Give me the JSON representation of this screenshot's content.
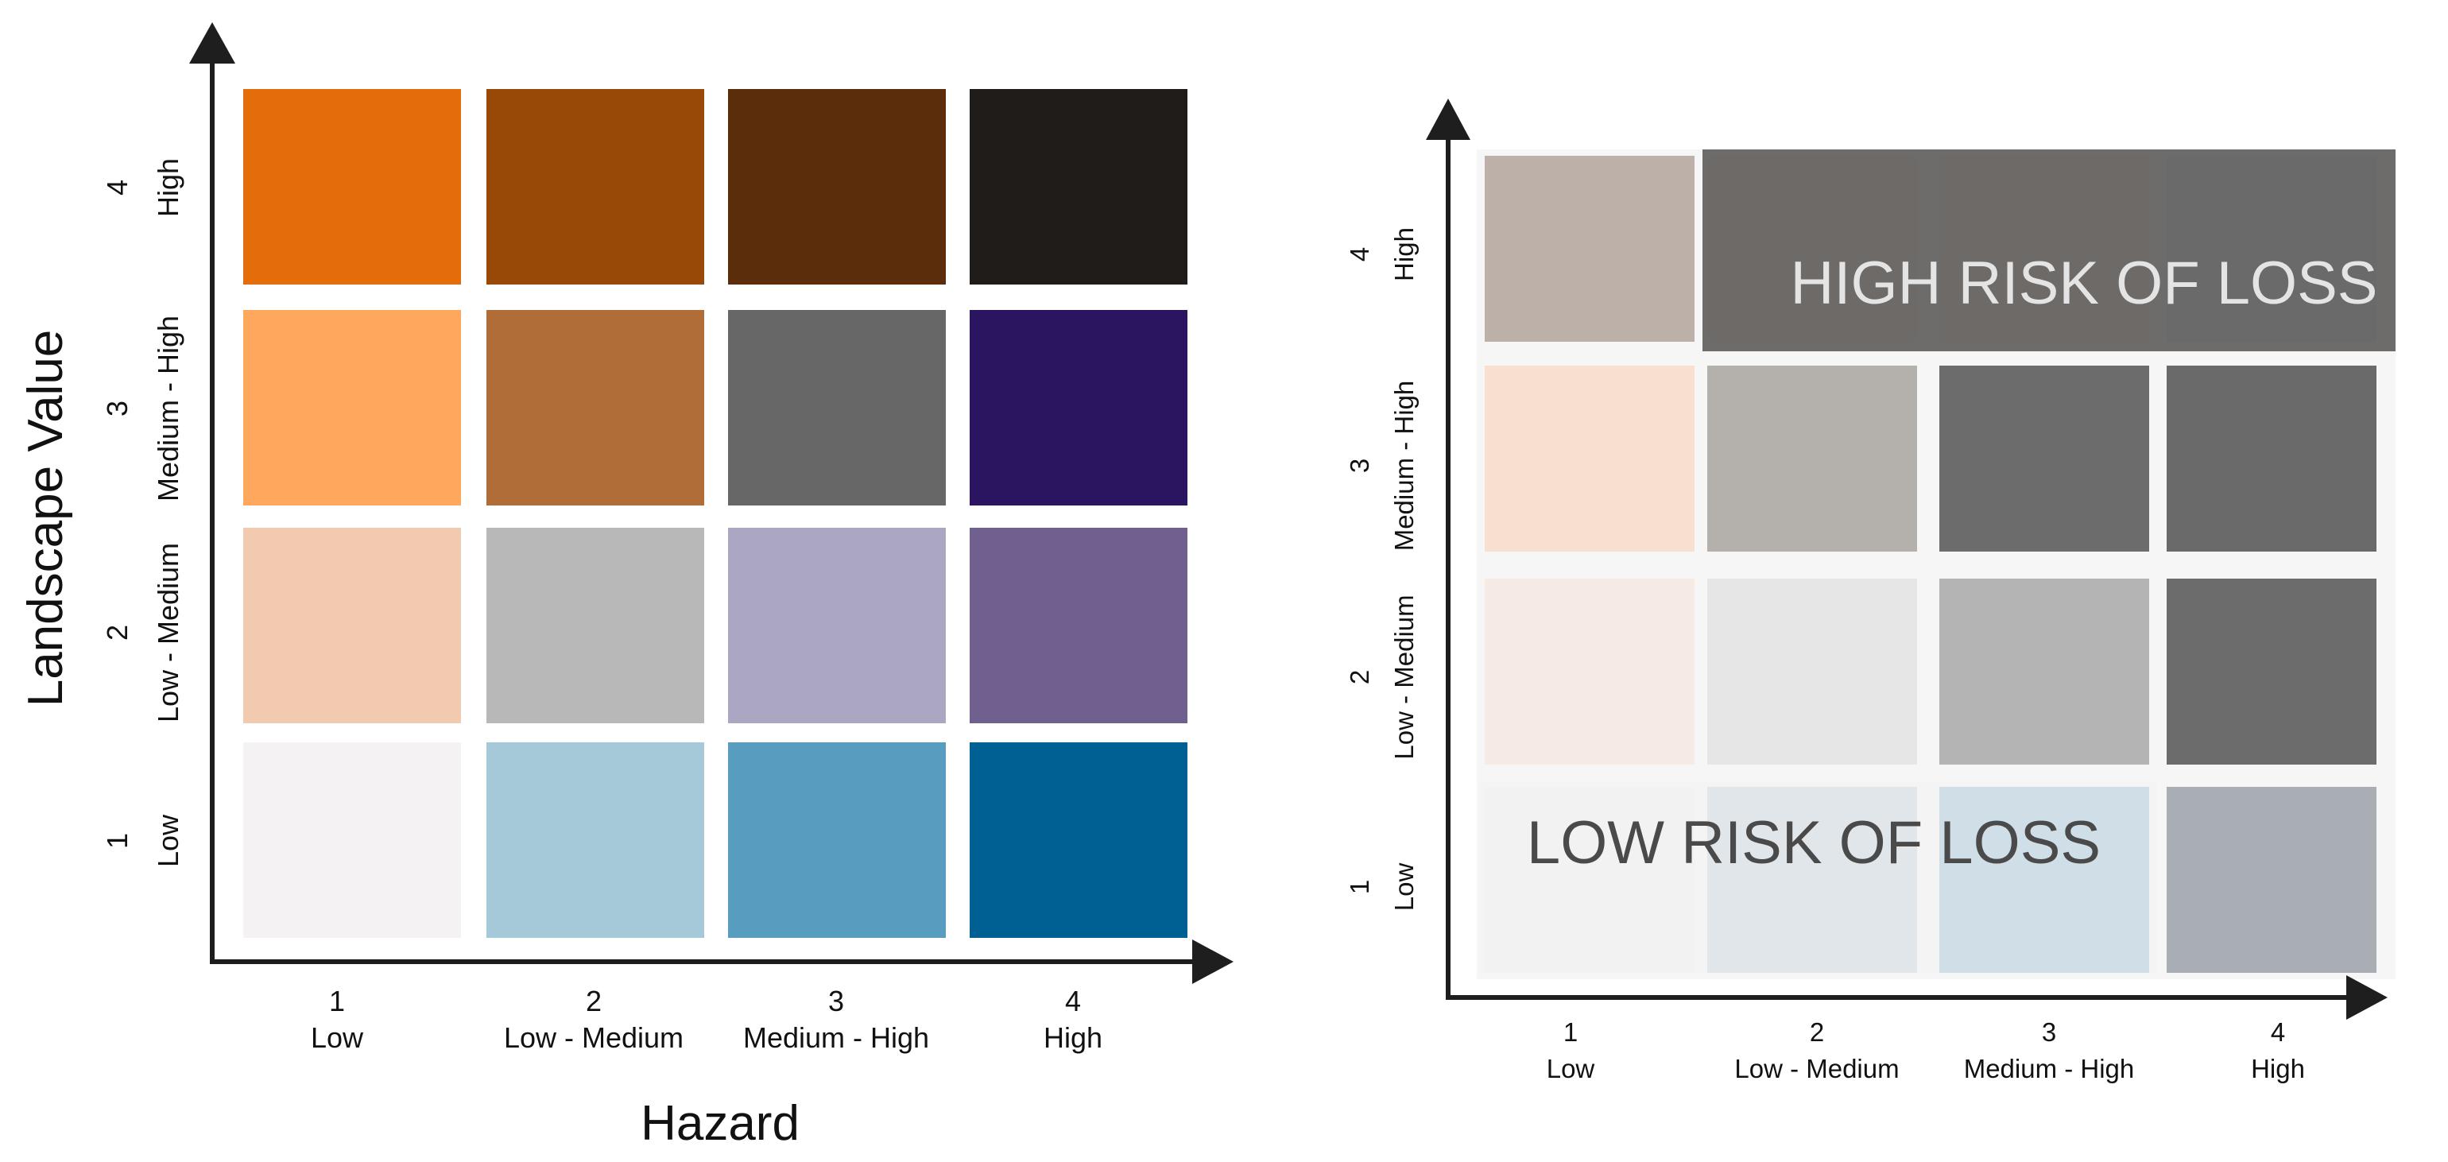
{
  "left_matrix": {
    "x_axis_title": "Hazard",
    "y_axis_title": "Landscape Value",
    "x_categories": [
      {
        "num": "1",
        "label": "Low"
      },
      {
        "num": "2",
        "label": "Low - Medium"
      },
      {
        "num": "3",
        "label": "Medium - High"
      },
      {
        "num": "4",
        "label": "High"
      }
    ],
    "y_categories": [
      {
        "num": "1",
        "label": "Low"
      },
      {
        "num": "2",
        "label": "Low - Medium"
      },
      {
        "num": "3",
        "label": "Medium - High"
      },
      {
        "num": "4",
        "label": "High"
      }
    ],
    "cell_colors_top_to_bottom": [
      [
        "#e46c0a",
        "#984807",
        "#5c2d0b",
        "#201c19"
      ],
      [
        "#fda85c",
        "#b06d38",
        "#676767",
        "#2b1560"
      ],
      [
        "#f2cab0",
        "#b8b8b8",
        "#aba6c2",
        "#6f6090"
      ],
      [
        "#f4f2f2",
        "#a6c9da",
        "#589cbf",
        "#006094"
      ]
    ]
  },
  "right_matrix": {
    "x_categories": [
      {
        "num": "1",
        "label": "Low"
      },
      {
        "num": "2",
        "label": "Low - Medium"
      },
      {
        "num": "3",
        "label": "Medium - High"
      },
      {
        "num": "4",
        "label": "High"
      }
    ],
    "y_categories": [
      {
        "num": "1",
        "label": "Low"
      },
      {
        "num": "2",
        "label": "Low - Medium"
      },
      {
        "num": "3",
        "label": "Medium - High"
      },
      {
        "num": "4",
        "label": "High"
      }
    ],
    "high_zone_label": "HIGH RISK OF LOSS",
    "low_zone_label": "LOW RISK OF LOSS",
    "cell_colors_top_to_bottom": [
      [
        "#bcb0a8",
        "#6e6a68",
        "#6e6a68",
        "#6a6a6a"
      ],
      [
        "#f8e0d0",
        "#b4b0ac",
        "#6c6c6c",
        "#6a6a6a"
      ],
      [
        "#f6ebe4",
        "#e6e6e6",
        "#b4b4b4",
        "#6c6c6c"
      ],
      [
        "#f2f2f2",
        "#e0e6ea",
        "#d0dee8",
        "#a8aeb4"
      ]
    ],
    "colors": {
      "high_zone_text": "#e4e4e4",
      "low_zone_text": "#4a4a4a",
      "high_zone_band": "#6e6c6a",
      "low_zone_band": "#f0f2f4"
    }
  }
}
